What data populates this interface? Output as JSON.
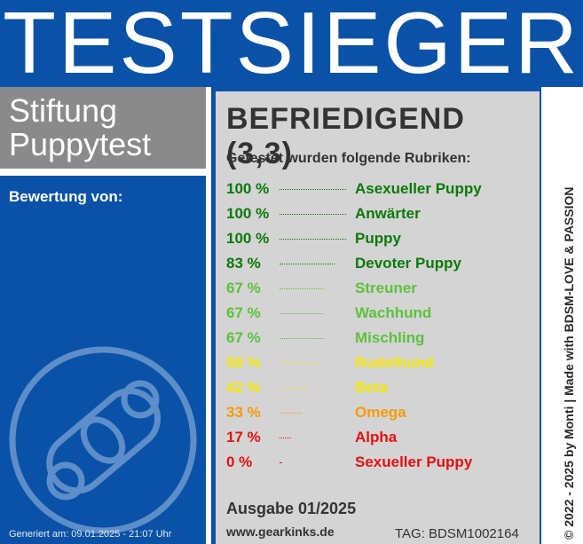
{
  "header": {
    "title": "TESTSIEGER"
  },
  "brand": {
    "line1": "Stiftung",
    "line2": "Puppytest"
  },
  "rating": {
    "label": "Bewertung von:"
  },
  "logo": {
    "icon": "pacifier-icon"
  },
  "result": {
    "title": "BEFRIEDIGEND (3,3)"
  },
  "subtitle": "Getestet wurden folgende Rubriken:",
  "categories": [
    {
      "percent": "100 %",
      "value": 100,
      "name": "Asexueller Puppy",
      "color": "#0a7a0a"
    },
    {
      "percent": "100 %",
      "value": 100,
      "name": "Anwärter",
      "color": "#0a7a0a"
    },
    {
      "percent": "100 %",
      "value": 100,
      "name": "Puppy",
      "color": "#0a7a0a"
    },
    {
      "percent": "83 %",
      "value": 83,
      "name": "Devoter Puppy",
      "color": "#0a7a0a"
    },
    {
      "percent": "67 %",
      "value": 67,
      "name": "Streuner",
      "color": "#5cc23a"
    },
    {
      "percent": "67 %",
      "value": 67,
      "name": "Wachhund",
      "color": "#5cc23a"
    },
    {
      "percent": "67 %",
      "value": 67,
      "name": "Mischling",
      "color": "#5cc23a"
    },
    {
      "percent": "58 %",
      "value": 58,
      "name": "Rudelhund",
      "color": "#f5e800"
    },
    {
      "percent": "42 %",
      "value": 42,
      "name": "Beta",
      "color": "#f5e800"
    },
    {
      "percent": "33 %",
      "value": 33,
      "name": "Omega",
      "color": "#f59a0a"
    },
    {
      "percent": "17 %",
      "value": 17,
      "name": "Alpha",
      "color": "#e81010"
    },
    {
      "percent": "0 %",
      "value": 0,
      "name": "Sexueller Puppy",
      "color": "#e81010"
    }
  ],
  "issue": "Ausgabe 01/2025",
  "url": "www.gearkinks.de",
  "tag": "TAG: BDSM1002164",
  "generated": "Generiert am: 09.01.2025 - 21:07 Uhr",
  "copyright": "© 2022 - 2025 by Monti | Made with BDSM-LOVE & PASSION"
}
